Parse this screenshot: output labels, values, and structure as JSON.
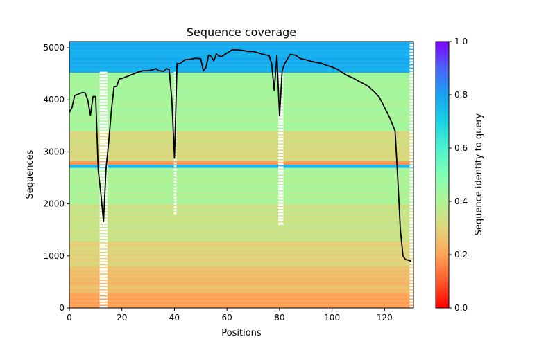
{
  "chart_data": {
    "type": "heatmap",
    "title": "Sequence coverage",
    "xlabel": "Positions",
    "ylabel": "Sequences",
    "xlim": [
      0,
      131
    ],
    "ylim": [
      0,
      5120
    ],
    "xticks": [
      0,
      20,
      40,
      60,
      80,
      100,
      120
    ],
    "yticks": [
      0,
      1000,
      2000,
      3000,
      4000,
      5000
    ],
    "colorbar": {
      "label": "Sequence identity to query",
      "colormap": "rainbow_r",
      "range": [
        0.0,
        1.0
      ],
      "ticks": [
        "0.0",
        "0.2",
        "0.4",
        "0.6",
        "0.8",
        "1.0"
      ]
    },
    "identity_bands": [
      {
        "from": 0,
        "to": 300,
        "identity": 0.2
      },
      {
        "from": 300,
        "to": 800,
        "identity": 0.25
      },
      {
        "from": 800,
        "to": 1300,
        "identity": 0.3
      },
      {
        "from": 1300,
        "to": 2000,
        "identity": 0.35
      },
      {
        "from": 2000,
        "to": 2700,
        "identity": 0.41
      },
      {
        "from": 2700,
        "to": 2760,
        "identity": 0.75
      },
      {
        "from": 2760,
        "to": 2830,
        "identity": 0.18
      },
      {
        "from": 2830,
        "to": 3400,
        "identity": 0.32
      },
      {
        "from": 3400,
        "to": 4530,
        "identity": 0.42
      },
      {
        "from": 4530,
        "to": 5120,
        "identity": 0.78
      }
    ],
    "coverage_line": {
      "color": "#000000",
      "x": [
        0,
        1,
        2,
        3,
        4,
        5,
        6,
        7,
        8,
        9,
        10,
        11,
        12,
        13,
        14,
        15,
        16,
        17,
        18,
        19,
        20,
        22,
        24,
        26,
        28,
        30,
        32,
        33,
        34,
        36,
        37,
        38,
        39,
        40,
        41,
        42,
        44,
        46,
        48,
        50,
        51,
        52,
        53,
        54,
        55,
        56,
        57,
        58,
        60,
        62,
        64,
        66,
        68,
        70,
        72,
        74,
        76,
        77,
        78,
        79,
        80,
        81,
        82,
        84,
        86,
        88,
        90,
        92,
        94,
        96,
        98,
        100,
        102,
        104,
        106,
        108,
        110,
        112,
        114,
        116,
        118,
        120,
        122,
        124,
        125,
        126,
        127,
        128,
        129,
        130
      ],
      "y": [
        3760,
        3850,
        4080,
        4100,
        4120,
        4140,
        4130,
        4000,
        3700,
        4060,
        4060,
        2650,
        2200,
        1660,
        2700,
        3200,
        3800,
        4250,
        4260,
        4400,
        4410,
        4450,
        4490,
        4530,
        4560,
        4560,
        4580,
        4600,
        4560,
        4550,
        4600,
        4580,
        4000,
        2880,
        4700,
        4690,
        4770,
        4780,
        4800,
        4790,
        4560,
        4620,
        4860,
        4830,
        4750,
        4880,
        4840,
        4830,
        4900,
        4960,
        4960,
        4950,
        4930,
        4930,
        4900,
        4870,
        4850,
        4700,
        4180,
        4850,
        3690,
        4560,
        4700,
        4870,
        4860,
        4790,
        4770,
        4740,
        4720,
        4700,
        4660,
        4630,
        4590,
        4520,
        4460,
        4420,
        4360,
        4310,
        4250,
        4160,
        4050,
        3850,
        3650,
        3400,
        2500,
        1500,
        1000,
        930,
        920,
        900
      ]
    }
  }
}
